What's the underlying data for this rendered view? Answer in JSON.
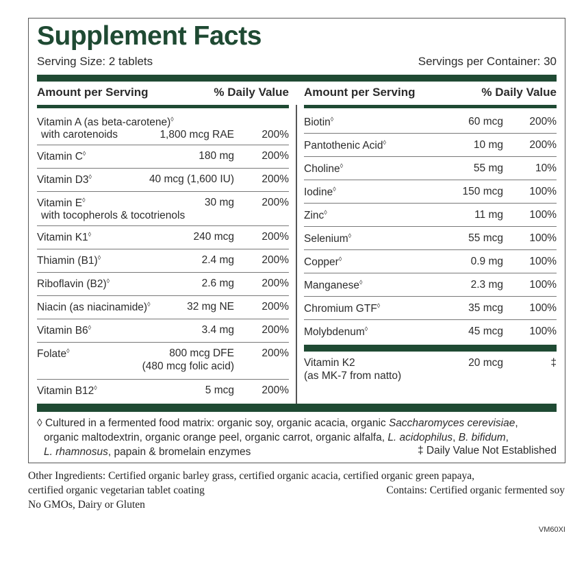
{
  "title": "Supplement Facts",
  "serving_size": "Serving Size: 2 tablets",
  "servings_per_container": "Servings per Container: 30",
  "column_header": {
    "amount": "Amount per Serving",
    "daily_value": "% Daily Value"
  },
  "left_rows": [
    {
      "name": "Vitamin A (as beta-carotene)",
      "mark": "◊",
      "sub": "with carotenoids",
      "amount": "1,800 mcg RAE",
      "dv": "200%"
    },
    {
      "name": "Vitamin C",
      "mark": "◊",
      "amount": "180 mg",
      "dv": "200%"
    },
    {
      "name": "Vitamin D3",
      "mark": "◊",
      "amount": "40 mcg (1,600 IU)",
      "dv": "200%"
    },
    {
      "name": "Vitamin E",
      "mark": "◊",
      "sub": "with tocopherols & tocotrienols",
      "amount": "30 mg",
      "dv": "200%"
    },
    {
      "name": "Vitamin K1",
      "mark": "◊",
      "amount": "240 mcg",
      "dv": "200%"
    },
    {
      "name": "Thiamin (B1)",
      "mark": "◊",
      "amount": "2.4 mg",
      "dv": "200%"
    },
    {
      "name": "Riboflavin (B2)",
      "mark": "◊",
      "amount": "2.6 mg",
      "dv": "200%"
    },
    {
      "name": "Niacin (as niacinamide)",
      "mark": "◊",
      "amount": "32 mg NE",
      "dv": "200%"
    },
    {
      "name": "Vitamin B6",
      "mark": "◊",
      "amount": "3.4 mg",
      "dv": "200%"
    },
    {
      "name": "Folate",
      "mark": "◊",
      "amount": "800 mcg DFE",
      "amount2": "(480 mcg folic acid)",
      "dv": "200%"
    },
    {
      "name": "Vitamin B12",
      "mark": "◊",
      "amount": "5 mcg",
      "dv": "200%"
    }
  ],
  "right_rows": [
    {
      "name": "Biotin",
      "mark": "◊",
      "amount": "60 mcg",
      "dv": "200%"
    },
    {
      "name": "Pantothenic Acid",
      "mark": "◊",
      "amount": "10 mg",
      "dv": "200%"
    },
    {
      "name": "Choline",
      "mark": "◊",
      "amount": "55 mg",
      "dv": "10%"
    },
    {
      "name": "Iodine",
      "mark": "◊",
      "amount": "150 mcg",
      "dv": "100%"
    },
    {
      "name": "Zinc",
      "mark": "◊",
      "amount": "11 mg",
      "dv": "100%"
    },
    {
      "name": "Selenium",
      "mark": "◊",
      "amount": "55 mcg",
      "dv": "100%"
    },
    {
      "name": "Copper",
      "mark": "◊",
      "amount": "0.9 mg",
      "dv": "100%"
    },
    {
      "name": "Manganese",
      "mark": "◊",
      "amount": "2.3 mg",
      "dv": "100%"
    },
    {
      "name": "Chromium GTF",
      "mark": "◊",
      "amount": "35 mcg",
      "dv": "100%"
    },
    {
      "name": "Molybdenum",
      "mark": "◊",
      "amount": "45 mcg",
      "dv": "100%"
    }
  ],
  "vitamin_k2": {
    "name": "Vitamin K2",
    "sub": "(as MK-7 from natto)",
    "amount": "20 mcg",
    "dv": "‡"
  },
  "footnote": {
    "line1_a": "◊ Cultured in a fermented food matrix: organic soy, organic acacia, organic ",
    "line1_b": "Saccharomyces cerevisiae",
    "line1_c": ",",
    "line2_a": "organic maltodextrin, organic orange peel, organic carrot, organic alfalfa, ",
    "line2_b": "L. acidophilus",
    "line2_c": ", ",
    "line2_d": "B. bifidum",
    "line2_e": ",",
    "line3_a": "L. rhamnosus",
    "line3_b": ", papain & bromelain enzymes",
    "dv_not_established": "‡ Daily Value Not Established"
  },
  "other_ingredients": {
    "line1": "Other Ingredients: Certified organic barley grass, certified organic acacia, certified organic green papaya,",
    "line2": "certified organic vegetarian tablet coating",
    "contains": "Contains: Certified organic fermented soy",
    "line3": "No GMOs, Dairy or Gluten"
  },
  "product_code": "VM60XI",
  "colors": {
    "header_green": "#1f4a33",
    "border": "#555555"
  }
}
